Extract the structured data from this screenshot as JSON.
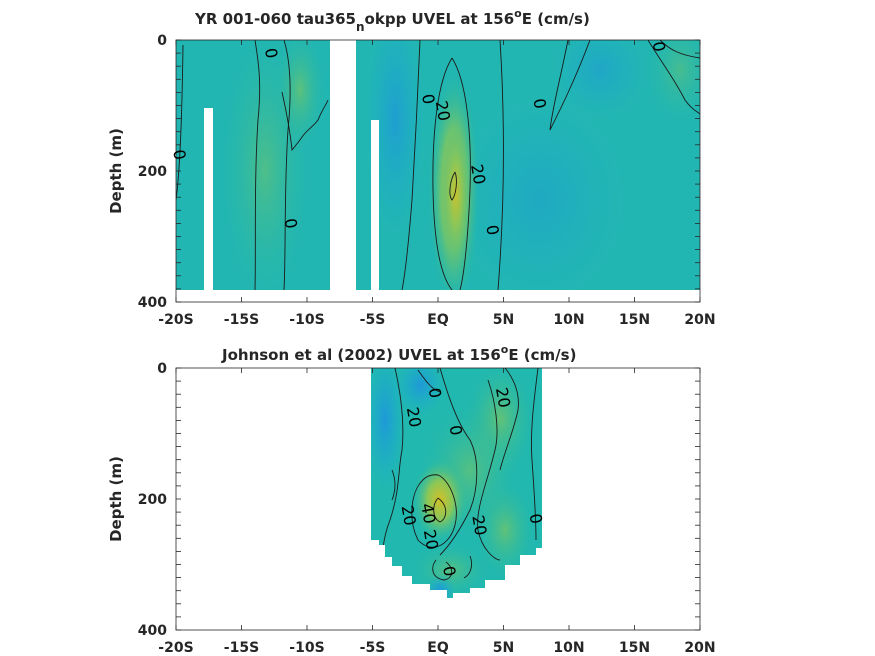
{
  "chart_data": [
    {
      "type": "heatmap",
      "title_main": "YR 001-060 tau365",
      "title_sub": "n",
      "title_rest": "okpp UVEL at 156",
      "title_deg": "o",
      "title_end": "E (cm/s)",
      "ylabel": "Depth (m)",
      "xlim": [
        -20,
        20
      ],
      "ylim": [
        0,
        400
      ],
      "y_reversed": true,
      "x_ticks": [
        -20,
        -15,
        -10,
        -5,
        0,
        5,
        10,
        15,
        20
      ],
      "x_tick_labels": [
        "-20S",
        "-15S",
        "-10S",
        "-5S",
        "EQ",
        "5N",
        "10N",
        "15N",
        "20N"
      ],
      "y_ticks": [
        0,
        200,
        400
      ],
      "y_tick_labels": [
        "0",
        "200",
        "400"
      ],
      "contour_labels": [
        {
          "text": "0",
          "lat": -12.7,
          "depth": 20
        },
        {
          "text": "0",
          "lat": -19.7,
          "depth": 175
        },
        {
          "text": "0",
          "lat": -11.2,
          "depth": 280
        },
        {
          "text": "0",
          "lat": -0.7,
          "depth": 90
        },
        {
          "text": "20",
          "lat": 0.4,
          "depth": 108
        },
        {
          "text": "20",
          "lat": 3.1,
          "depth": 205
        },
        {
          "text": "0",
          "lat": 4.2,
          "depth": 290
        },
        {
          "text": "0",
          "lat": 7.8,
          "depth": 97
        },
        {
          "text": "0",
          "lat": 16.9,
          "depth": 10
        }
      ]
    },
    {
      "type": "heatmap",
      "title_main": "Johnson et al (2002) UVEL at 156",
      "title_deg": "o",
      "title_end": "E (cm/s)",
      "ylabel": "Depth (m)",
      "xlim": [
        -20,
        20
      ],
      "ylim": [
        0,
        400
      ],
      "y_reversed": true,
      "x_ticks": [
        -20,
        -15,
        -10,
        -5,
        0,
        5,
        10,
        15,
        20
      ],
      "x_tick_labels": [
        "-20S",
        "-15S",
        "-10S",
        "-5S",
        "EQ",
        "5N",
        "10N",
        "15N",
        "20N"
      ],
      "y_ticks": [
        0,
        200,
        400
      ],
      "y_tick_labels": [
        "0",
        "200",
        "400"
      ],
      "data_lat_range": [
        -5,
        8
      ],
      "contour_labels": [
        {
          "text": "0",
          "lat": -0.2,
          "depth": 38
        },
        {
          "text": "20",
          "lat": -1.8,
          "depth": 75
        },
        {
          "text": "0",
          "lat": 1.4,
          "depth": 95
        },
        {
          "text": "20",
          "lat": 5.0,
          "depth": 45
        },
        {
          "text": "40",
          "lat": -0.7,
          "depth": 222
        },
        {
          "text": "20",
          "lat": -2.2,
          "depth": 225
        },
        {
          "text": "20",
          "lat": -0.5,
          "depth": 262
        },
        {
          "text": "20",
          "lat": 3.2,
          "depth": 240
        },
        {
          "text": "0",
          "lat": 7.5,
          "depth": 230
        },
        {
          "text": "0",
          "lat": 0.9,
          "depth": 310
        }
      ]
    }
  ]
}
